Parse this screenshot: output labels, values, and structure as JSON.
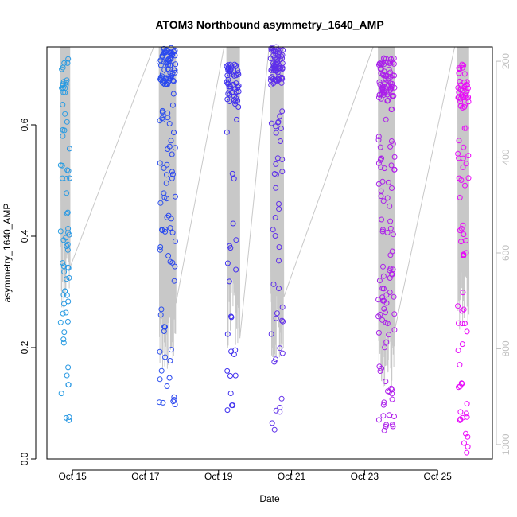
{
  "chart_data": {
    "type": "scatter",
    "title": "ATOM3 Northbound asymmetry_1640_AMP",
    "xlabel": "Date",
    "ylabel": "asymmetry_1640_AMP",
    "xlim": [
      14.3,
      26.5
    ],
    "ylim": [
      0.0,
      0.74
    ],
    "x_ticks": [
      15,
      17,
      19,
      21,
      23,
      25
    ],
    "x_tick_labels": [
      "Oct 15",
      "Oct 17",
      "Oct 19",
      "Oct 21",
      "Oct 23",
      "Oct 25"
    ],
    "y_ticks": [
      0.0,
      0.2,
      0.4,
      0.6
    ],
    "y_tick_labels": [
      "0.0",
      "0.2",
      "0.4",
      "0.6"
    ],
    "y2_lim": [
      170,
      1030
    ],
    "y2_ticks": [
      200,
      400,
      600,
      800,
      1000
    ],
    "y2_tick_labels": [
      "200",
      "400",
      "600",
      "800",
      "1000"
    ],
    "series_color_gradient": [
      "#29a9e0",
      "#2a33f2",
      "#8a2be2",
      "#ff00ff"
    ],
    "line_color": "#c8c8c8",
    "grid": false,
    "clusters": [
      {
        "center": 14.8,
        "width": 0.25,
        "n": 70,
        "y_min": 0.06,
        "y_max": 0.72,
        "high_frac": 0.15,
        "depth_high": 180,
        "depth_low": 720
      },
      {
        "center": 17.6,
        "width": 0.45,
        "n": 130,
        "y_min": 0.09,
        "y_max": 0.74,
        "high_frac": 0.45,
        "depth_high": 180,
        "depth_low": 850
      },
      {
        "center": 19.4,
        "width": 0.35,
        "n": 75,
        "y_min": 0.08,
        "y_max": 0.71,
        "high_frac": 0.55,
        "depth_high": 180,
        "depth_low": 800
      },
      {
        "center": 20.6,
        "width": 0.35,
        "n": 110,
        "y_min": 0.05,
        "y_max": 0.74,
        "high_frac": 0.55,
        "depth_high": 180,
        "depth_low": 820
      },
      {
        "center": 23.6,
        "width": 0.45,
        "n": 160,
        "y_min": 0.05,
        "y_max": 0.72,
        "high_frac": 0.35,
        "depth_high": 180,
        "depth_low": 880
      },
      {
        "center": 25.7,
        "width": 0.3,
        "n": 90,
        "y_min": 0.01,
        "y_max": 0.71,
        "high_frac": 0.35,
        "depth_high": 180,
        "depth_low": 760
      }
    ]
  }
}
